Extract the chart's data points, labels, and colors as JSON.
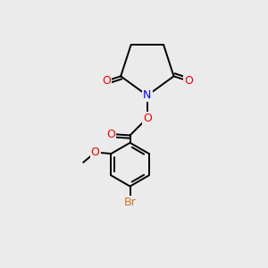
{
  "background_color": "#ebebeb",
  "bond_color": "#000000",
  "atom_colors": {
    "N": "#0000ee",
    "O": "#ee0000",
    "Br": "#cc7722",
    "C": "#000000"
  },
  "figsize": [
    3.0,
    3.0
  ],
  "dpi": 100
}
